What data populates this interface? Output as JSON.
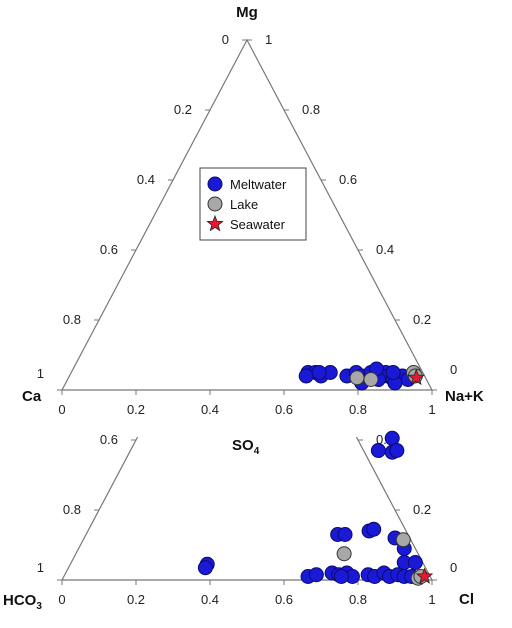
{
  "chart_data": {
    "type": "scatter",
    "subtype": "ternary",
    "legend": {
      "placement": "inside upper triangle, left",
      "entries": [
        {
          "name": "Meltwater",
          "marker": "circle",
          "color": "#1a1ad6"
        },
        {
          "name": "Lake",
          "marker": "circle",
          "color": "#a8a8a8"
        },
        {
          "name": "Seawater",
          "marker": "star",
          "color": "#e8182e"
        }
      ]
    },
    "cation_triangle": {
      "vertices": {
        "top": "Mg",
        "left": "Ca",
        "right": "Na+K"
      },
      "bottom_ticks": [
        "0",
        "0.2",
        "0.4",
        "0.6",
        "0.8",
        "1"
      ],
      "left_ticks": [
        "1",
        "0.8",
        "0.6",
        "0.4",
        "0.2",
        "0"
      ],
      "right_ticks": [
        "0",
        "0.2",
        "0.4",
        "0.6",
        "0.8",
        "1"
      ],
      "series": [
        {
          "name": "Meltwater",
          "points": [
            {
              "nak": 0.64,
              "mg": 0.05
            },
            {
              "nak": 0.66,
              "mg": 0.05
            },
            {
              "nak": 0.68,
              "mg": 0.04
            },
            {
              "nak": 0.7,
              "mg": 0.05
            },
            {
              "nak": 0.64,
              "mg": 0.04
            },
            {
              "nak": 0.67,
              "mg": 0.05
            },
            {
              "nak": 0.75,
              "mg": 0.04
            },
            {
              "nak": 0.77,
              "mg": 0.05
            },
            {
              "nak": 0.79,
              "mg": 0.04
            },
            {
              "nak": 0.81,
              "mg": 0.05
            },
            {
              "nak": 0.83,
              "mg": 0.04
            },
            {
              "nak": 0.85,
              "mg": 0.05
            },
            {
              "nak": 0.86,
              "mg": 0.04
            },
            {
              "nak": 0.88,
              "mg": 0.03
            },
            {
              "nak": 0.9,
              "mg": 0.04
            },
            {
              "nak": 0.92,
              "mg": 0.03
            },
            {
              "nak": 0.8,
              "mg": 0.02
            },
            {
              "nak": 0.84,
              "mg": 0.03
            },
            {
              "nak": 0.89,
              "mg": 0.02
            },
            {
              "nak": 0.82,
              "mg": 0.06
            },
            {
              "nak": 0.87,
              "mg": 0.05
            }
          ]
        },
        {
          "name": "Lake",
          "points": [
            {
              "nak": 0.78,
              "mg": 0.035
            },
            {
              "nak": 0.82,
              "mg": 0.03
            },
            {
              "nak": 0.925,
              "mg": 0.05
            },
            {
              "nak": 0.935,
              "mg": 0.04
            }
          ]
        },
        {
          "name": "Seawater",
          "points": [
            {
              "nak": 0.94,
              "mg": 0.035
            }
          ]
        }
      ]
    },
    "anion_triangle": {
      "vertices": {
        "top": "SO4",
        "left": "HCO3",
        "right": "Cl"
      },
      "top_label_text": "SO",
      "top_label_sub": "4",
      "left_label_text": "HCO",
      "left_label_sub": "3",
      "right_label_text": "Cl",
      "bottom_ticks": [
        "0",
        "0.2",
        "0.4",
        "0.6",
        "0.8",
        "1"
      ],
      "left_ticks": [
        {
          "value": 0.6,
          "label": "0.6"
        },
        {
          "value": 0.8,
          "label": "0.8"
        },
        {
          "value": 1.0,
          "label": "1"
        }
      ],
      "right_ticks": [
        {
          "value": 0.4,
          "label": "0.4"
        },
        {
          "value": 0.2,
          "label": "0.2"
        },
        {
          "value": 0.0,
          "label": "0"
        }
      ],
      "series": [
        {
          "name": "Meltwater",
          "points": [
            {
              "cl": 0.37,
              "so4": 0.045
            },
            {
              "cl": 0.37,
              "so4": 0.035
            },
            {
              "cl": 0.69,
              "so4": 0.405
            },
            {
              "cl": 0.67,
              "so4": 0.37
            },
            {
              "cl": 0.71,
              "so4": 0.365
            },
            {
              "cl": 0.72,
              "so4": 0.37
            },
            {
              "cl": 0.68,
              "so4": 0.13
            },
            {
              "cl": 0.7,
              "so4": 0.13
            },
            {
              "cl": 0.76,
              "so4": 0.14
            },
            {
              "cl": 0.77,
              "so4": 0.145
            },
            {
              "cl": 0.84,
              "so4": 0.12
            },
            {
              "cl": 0.88,
              "so4": 0.09
            },
            {
              "cl": 0.9,
              "so4": 0.05
            },
            {
              "cl": 0.93,
              "so4": 0.05
            },
            {
              "cl": 0.66,
              "so4": 0.01
            },
            {
              "cl": 0.68,
              "so4": 0.015
            },
            {
              "cl": 0.72,
              "so4": 0.02
            },
            {
              "cl": 0.74,
              "so4": 0.015
            },
            {
              "cl": 0.76,
              "so4": 0.02
            },
            {
              "cl": 0.78,
              "so4": 0.01
            },
            {
              "cl": 0.82,
              "so4": 0.015
            },
            {
              "cl": 0.84,
              "so4": 0.01
            },
            {
              "cl": 0.86,
              "so4": 0.02
            },
            {
              "cl": 0.88,
              "so4": 0.01
            },
            {
              "cl": 0.9,
              "so4": 0.015
            },
            {
              "cl": 0.92,
              "so4": 0.01
            },
            {
              "cl": 0.94,
              "so4": 0.01
            },
            {
              "cl": 0.75,
              "so4": 0.01
            }
          ]
        },
        {
          "name": "Lake",
          "points": [
            {
              "cl": 0.725,
              "so4": 0.075
            },
            {
              "cl": 0.865,
              "so4": 0.115
            },
            {
              "cl": 0.96,
              "so4": 0.005
            },
            {
              "cl": 0.965,
              "so4": 0.01
            }
          ]
        },
        {
          "name": "Seawater",
          "points": [
            {
              "cl": 0.975,
              "so4": 0.01
            }
          ]
        }
      ]
    }
  }
}
